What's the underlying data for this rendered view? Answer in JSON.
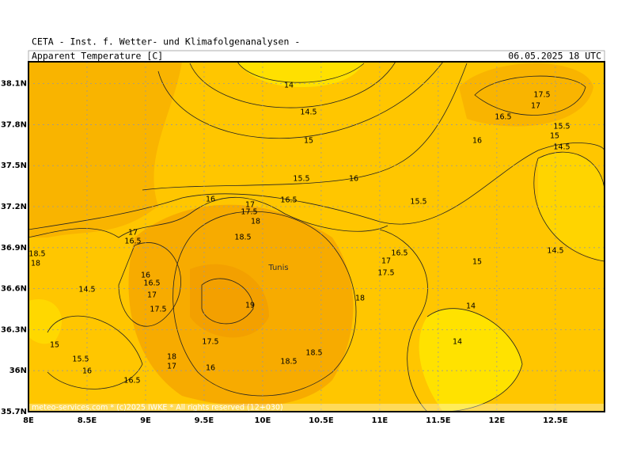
{
  "header": {
    "source": "CETA - Inst. f. Wetter- und Klimafolgenanalysen -",
    "parameter": "Apparent_Temperature_[C]",
    "valid_time": "06.05.2025 18 UTC"
  },
  "map": {
    "xlim": [
      8,
      12.92
    ],
    "ylim": [
      35.7,
      38.26
    ],
    "xticks": [
      {
        "value": 8,
        "label": "8E"
      },
      {
        "value": 8.5,
        "label": "8.5E"
      },
      {
        "value": 9,
        "label": "9E"
      },
      {
        "value": 9.5,
        "label": "9.5E"
      },
      {
        "value": 10,
        "label": "10E"
      },
      {
        "value": 10.5,
        "label": "10.5E"
      },
      {
        "value": 11,
        "label": "11E"
      },
      {
        "value": 11.5,
        "label": "11.5E"
      },
      {
        "value": 12,
        "label": "12E"
      },
      {
        "value": 12.5,
        "label": "12.5E"
      }
    ],
    "yticks": [
      {
        "value": 35.7,
        "label": "35.7N"
      },
      {
        "value": 36,
        "label": "36N"
      },
      {
        "value": 36.3,
        "label": "36.3N"
      },
      {
        "value": 36.6,
        "label": "36.6N"
      },
      {
        "value": 36.9,
        "label": "36.9N"
      },
      {
        "value": 37.2,
        "label": "37.2N"
      },
      {
        "value": 37.5,
        "label": "37.5N"
      },
      {
        "value": 37.8,
        "label": "37.8N"
      },
      {
        "value": 38.1,
        "label": "38.1N"
      }
    ],
    "contour_labels": [
      "14",
      "14.5",
      "15",
      "15.5",
      "16",
      "16",
      "16.5",
      "17",
      "17.5",
      "18",
      "18.5",
      "15.5",
      "17.5",
      "17",
      "16.5",
      "16",
      "15.5",
      "15",
      "14.5",
      "16.5",
      "17",
      "17.5",
      "15",
      "14.5",
      "14",
      "14",
      "18",
      "19",
      "18.5",
      "18.5",
      "17.5",
      "18",
      "17",
      "16",
      "16.5",
      "16",
      "15.5",
      "15",
      "14.5",
      "17.5",
      "17",
      "16.5",
      "16",
      "17",
      "16.5",
      "18.5",
      "18"
    ],
    "places": [
      "Tunis"
    ],
    "footer": "meteo-services.com * (c)2025 IWKE * All rights reserved (12+030)"
  }
}
